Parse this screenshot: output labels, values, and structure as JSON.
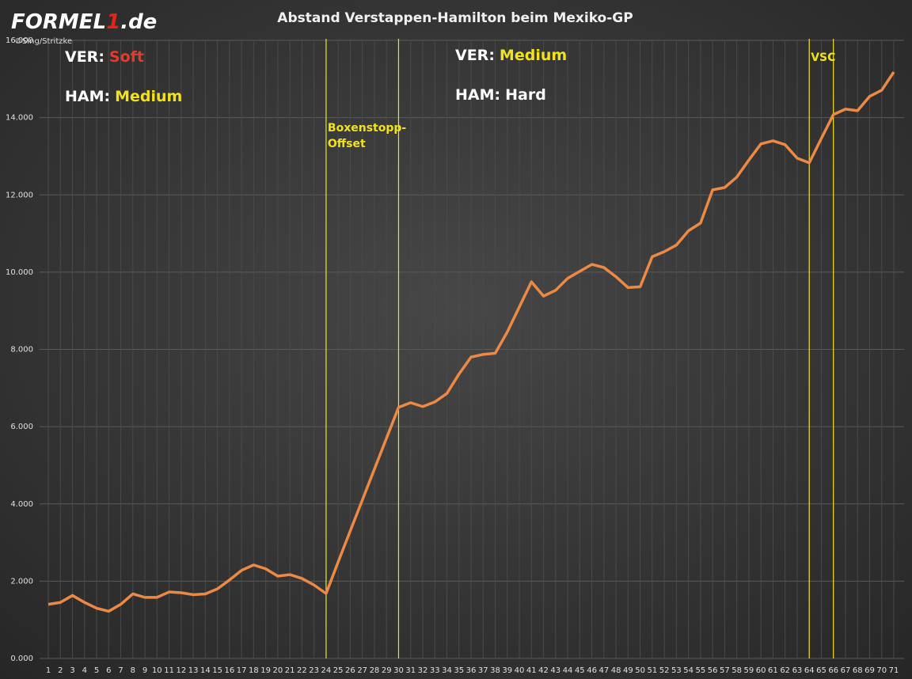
{
  "logo": {
    "parts": [
      "FORMEL",
      "1",
      ".de"
    ],
    "credit": "©Sing/Stritzke"
  },
  "chart_data": {
    "type": "line",
    "title": "Abstand  Verstappen-Hamilton  beim  Mexiko-GP",
    "categories": [
      1,
      2,
      3,
      4,
      5,
      6,
      7,
      8,
      9,
      10,
      11,
      12,
      13,
      14,
      15,
      16,
      17,
      18,
      19,
      20,
      21,
      22,
      23,
      24,
      25,
      26,
      27,
      28,
      29,
      30,
      31,
      32,
      33,
      34,
      35,
      36,
      37,
      38,
      39,
      40,
      41,
      42,
      43,
      44,
      45,
      46,
      47,
      48,
      49,
      50,
      51,
      52,
      53,
      54,
      55,
      56,
      57,
      58,
      59,
      60,
      61,
      62,
      63,
      64,
      65,
      66,
      67,
      68,
      69,
      70,
      71
    ],
    "series": [
      {
        "color": "#ec8a45",
        "values": [
          1.4,
          1.45,
          1.63,
          1.45,
          1.3,
          1.22,
          1.4,
          1.67,
          1.58,
          1.58,
          1.72,
          1.7,
          1.65,
          1.67,
          1.8,
          2.03,
          2.28,
          2.42,
          2.32,
          2.13,
          2.17,
          2.07,
          1.9,
          1.68,
          2.5,
          3.3,
          4.1,
          4.9,
          5.7,
          6.5,
          6.62,
          6.52,
          6.64,
          6.86,
          7.36,
          7.8,
          7.87,
          7.9,
          8.45,
          9.1,
          9.75,
          9.38,
          9.53,
          9.84,
          10.02,
          10.2,
          10.12,
          9.88,
          9.6,
          9.62,
          10.4,
          10.53,
          10.7,
          11.07,
          11.27,
          12.13,
          12.19,
          12.46,
          12.9,
          13.32,
          13.4,
          13.3,
          12.95,
          12.83,
          13.46,
          14.08,
          14.22,
          14.18,
          14.55,
          14.71,
          15.18
        ]
      }
    ],
    "ylim": [
      0,
      16
    ],
    "yticks": [
      {
        "value": 0,
        "label": "0.000"
      },
      {
        "value": 2,
        "label": "2.000"
      },
      {
        "value": 4,
        "label": "4.000"
      },
      {
        "value": 6,
        "label": "6.000"
      },
      {
        "value": 8,
        "label": "8.000"
      },
      {
        "value": 10,
        "label": "10.000"
      },
      {
        "value": 12,
        "label": "12.000"
      },
      {
        "value": 14,
        "label": "14.000"
      },
      {
        "value": 16,
        "label": "16.000"
      }
    ],
    "grid": true,
    "markers": [
      {
        "x": 24,
        "color": "#f2e21a"
      },
      {
        "x": 30,
        "color": "#f2e21a"
      },
      {
        "x": 64,
        "color": "#f2e21a"
      },
      {
        "x": 66,
        "color": "#f2e21a"
      }
    ],
    "annotations": [
      {
        "x": 24,
        "lines": [
          "Boxenstopp-",
          "Offset"
        ],
        "color": "#f2e21a"
      },
      {
        "x": 64,
        "lines": [
          "VSC"
        ],
        "color": "#f2e21a"
      }
    ],
    "stints": [
      [
        {
          "label": "VER:",
          "compound": "Soft",
          "color": "#e53a2e"
        },
        {
          "label": "HAM:",
          "compound": "Medium",
          "color": "#f2e21a"
        }
      ],
      [
        {
          "label": "VER:",
          "compound": "Medium",
          "color": "#f2e21a"
        },
        {
          "label": "HAM:",
          "compound": "Hard",
          "color": "#ffffff"
        }
      ]
    ]
  }
}
